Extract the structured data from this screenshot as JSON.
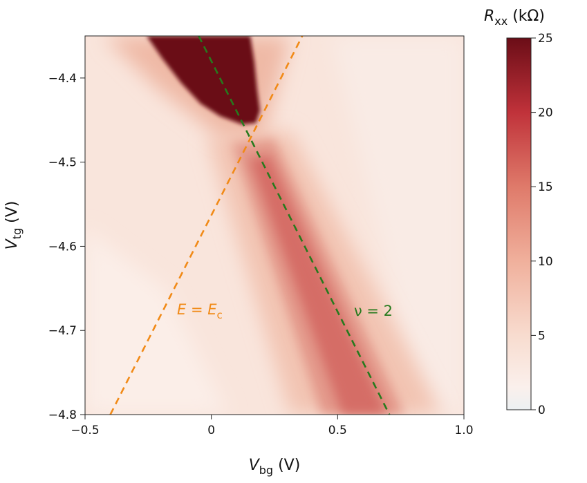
{
  "chart_data": {
    "type": "heatmap",
    "x_axis": {
      "label_main": "V",
      "label_sub": "bg",
      "label_unit": " (V)",
      "range": [
        -0.5,
        1.0
      ],
      "ticks": [
        -0.5,
        0,
        0.5,
        1.0
      ],
      "tick_labels": [
        "−0.5",
        "0",
        "0.5",
        "1.0"
      ]
    },
    "y_axis": {
      "label_main": "V",
      "label_sub": "tg",
      "label_unit": " (V)",
      "range": [
        -4.8,
        -4.35
      ],
      "ticks": [
        -4.8,
        -4.7,
        -4.6,
        -4.5,
        -4.4
      ],
      "tick_labels": [
        "−4.8",
        "−4.7",
        "−4.6",
        "−4.5",
        "−4.4"
      ]
    },
    "colorbar": {
      "label_main": "R",
      "label_sub": "xx",
      "label_unit": " (kΩ)",
      "range": [
        0,
        25
      ],
      "ticks": [
        0,
        5,
        10,
        15,
        20,
        25
      ],
      "tick_labels": [
        "0",
        "5",
        "10",
        "15",
        "20",
        "25"
      ],
      "colors": [
        "#ecf0f2",
        "#faf0ec",
        "#f4c5b2",
        "#e58a7a",
        "#c4363a",
        "#6b0d17"
      ]
    },
    "lines": [
      {
        "label_main": "E",
        "label_eq": " = ",
        "label_sub_main": "E",
        "label_sub": "c",
        "color": "#f18a17",
        "style": "dashed",
        "points": [
          [
            -0.4,
            -4.8
          ],
          [
            0.36,
            -4.35
          ]
        ]
      },
      {
        "label": "ν = 2",
        "color": "#267a1d",
        "style": "dashed",
        "points": [
          [
            -0.05,
            -4.35
          ],
          [
            0.705,
            -4.8
          ]
        ]
      }
    ],
    "features": {
      "dark_region": {
        "x_range": [
          -0.25,
          0.2
        ],
        "y_range": [
          -4.46,
          -4.35
        ],
        "value": 25
      },
      "diagonal_band": {
        "from": [
          0.15,
          -4.47
        ],
        "to": [
          0.65,
          -4.8
        ],
        "peak_value": 17
      },
      "background_value": 3
    }
  }
}
